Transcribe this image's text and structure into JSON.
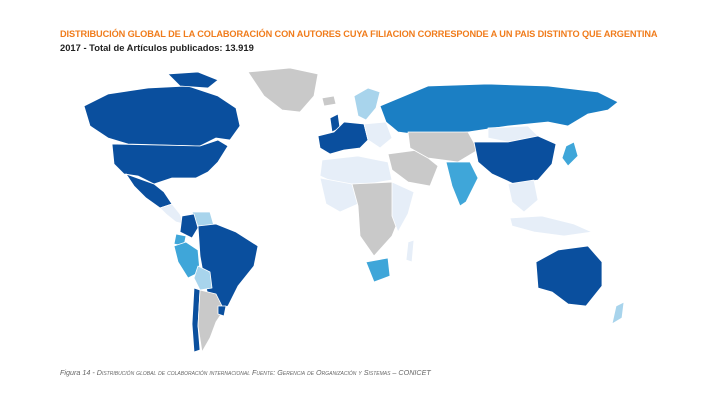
{
  "header": {
    "title": "DISTRIBUCIÓN GLOBAL DE LA COLABORACIÓN CON AUTORES CUYA FILIACION CORRESPONDE A UN PAIS DISTINTO QUE ARGENTINA",
    "subtitle": "2017 - Total de Artículos publicados: 13.919"
  },
  "caption": {
    "figure_label": "Figura 14 - ",
    "text": "Distribución global de colaboración internacional Fuente: Gerencia de Organización y Sistemas – CONICET"
  },
  "colors": {
    "highest": "#0a4f9e",
    "high": "#1b7fc4",
    "medium": "#3fa6d9",
    "low": "#a8d4ec",
    "lowest": "#e6eef8",
    "no_data": "#c9c9c9",
    "background": "#ffffff"
  },
  "map": {
    "regions": [
      {
        "name": "greenland",
        "level": "no_data"
      },
      {
        "name": "canada",
        "level": "highest"
      },
      {
        "name": "usa",
        "level": "highest"
      },
      {
        "name": "mexico",
        "level": "highest"
      },
      {
        "name": "central-america",
        "level": "lowest"
      },
      {
        "name": "colombia",
        "level": "highest"
      },
      {
        "name": "venezuela",
        "level": "low"
      },
      {
        "name": "ecuador",
        "level": "medium"
      },
      {
        "name": "peru",
        "level": "medium"
      },
      {
        "name": "brazil",
        "level": "highest"
      },
      {
        "name": "bolivia",
        "level": "low"
      },
      {
        "name": "chile",
        "level": "highest"
      },
      {
        "name": "argentina",
        "level": "no_data"
      },
      {
        "name": "uruguay",
        "level": "highest"
      },
      {
        "name": "iceland",
        "level": "no_data"
      },
      {
        "name": "uk",
        "level": "highest"
      },
      {
        "name": "scandinavia",
        "level": "low"
      },
      {
        "name": "western-europe",
        "level": "highest"
      },
      {
        "name": "eastern-europe",
        "level": "lowest"
      },
      {
        "name": "russia",
        "level": "high"
      },
      {
        "name": "north-africa",
        "level": "lowest"
      },
      {
        "name": "west-africa",
        "level": "lowest"
      },
      {
        "name": "central-africa",
        "level": "no_data"
      },
      {
        "name": "east-africa",
        "level": "lowest"
      },
      {
        "name": "south-africa",
        "level": "medium"
      },
      {
        "name": "madagascar",
        "level": "lowest"
      },
      {
        "name": "middle-east",
        "level": "no_data"
      },
      {
        "name": "central-asia",
        "level": "no_data"
      },
      {
        "name": "india",
        "level": "medium"
      },
      {
        "name": "china",
        "level": "highest"
      },
      {
        "name": "mongolia",
        "level": "lowest"
      },
      {
        "name": "japan",
        "level": "medium"
      },
      {
        "name": "southeast-asia",
        "level": "lowest"
      },
      {
        "name": "indonesia",
        "level": "lowest"
      },
      {
        "name": "australia",
        "level": "highest"
      },
      {
        "name": "new-zealand",
        "level": "low"
      }
    ]
  }
}
